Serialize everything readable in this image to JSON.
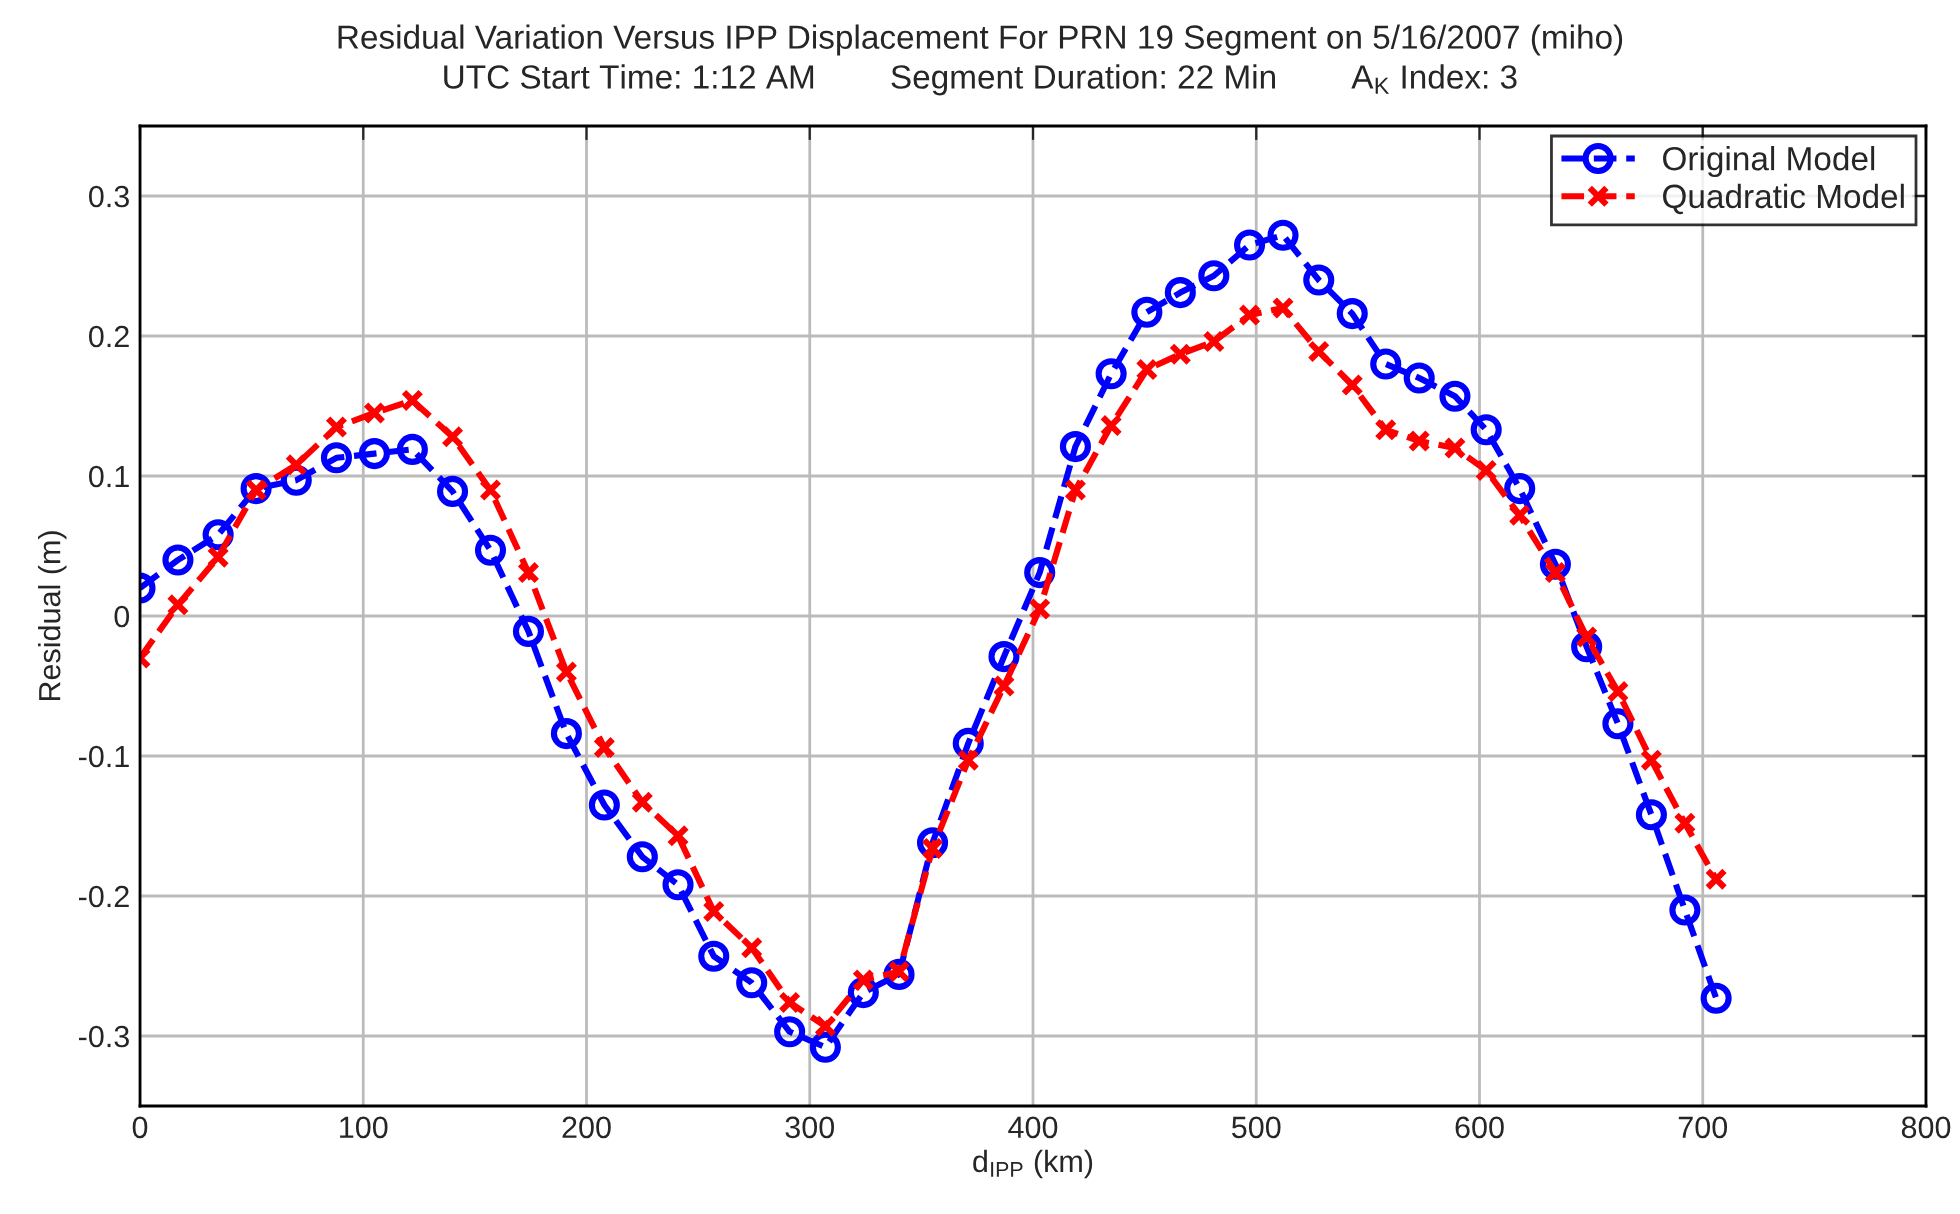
{
  "chart_data": {
    "type": "line",
    "title": "Residual Variation Versus IPP Displacement For PRN 19 Segment on 5/16/2007 (miho)",
    "subtitle": "UTC Start Time: 1:12 AM        Segment Duration: 22 Min        A$_{K}$ Index: 3",
    "xlabel": "d$_{IPP}$ (km)",
    "ylabel": "Residual (m)",
    "x": [
      0,
      17,
      35,
      52,
      70,
      88,
      105,
      122,
      140,
      157,
      174,
      191,
      208,
      225,
      241,
      257,
      274,
      291,
      307,
      324,
      340,
      355,
      371,
      387,
      403,
      419,
      435,
      451,
      466,
      481,
      497,
      512,
      528,
      543,
      558,
      573,
      589,
      603,
      618,
      634,
      648,
      662,
      677,
      692,
      706
    ],
    "series": [
      {
        "name": "Original Model",
        "color": "#0000ff",
        "marker": "circle",
        "line_style": "dashed",
        "values": [
          0.02,
          0.04,
          0.058,
          0.091,
          0.097,
          0.113,
          0.116,
          0.119,
          0.089,
          0.047,
          -0.011,
          -0.084,
          -0.135,
          -0.172,
          -0.192,
          -0.243,
          -0.262,
          -0.297,
          -0.308,
          -0.269,
          -0.256,
          -0.162,
          -0.091,
          -0.029,
          0.031,
          0.121,
          0.173,
          0.217,
          0.231,
          0.243,
          0.265,
          0.272,
          0.24,
          0.216,
          0.18,
          0.17,
          0.157,
          0.133,
          0.091,
          0.037,
          -0.022,
          -0.077,
          -0.142,
          -0.21,
          -0.273
        ]
      },
      {
        "name": "Quadratic Model",
        "color": "#ff0000",
        "marker": "cross",
        "line_style": "dashed",
        "values": [
          -0.03,
          0.008,
          0.042,
          0.09,
          0.108,
          0.135,
          0.145,
          0.154,
          0.128,
          0.09,
          0.031,
          -0.04,
          -0.094,
          -0.133,
          -0.157,
          -0.211,
          -0.237,
          -0.276,
          -0.293,
          -0.26,
          -0.254,
          -0.166,
          -0.103,
          -0.05,
          0.005,
          0.09,
          0.136,
          0.176,
          0.187,
          0.196,
          0.215,
          0.22,
          0.189,
          0.165,
          0.133,
          0.125,
          0.12,
          0.104,
          0.072,
          0.031,
          -0.015,
          -0.054,
          -0.103,
          -0.148,
          -0.188
        ]
      }
    ],
    "xlim": [
      0,
      800
    ],
    "xticks": [
      0,
      100,
      200,
      300,
      400,
      500,
      600,
      700,
      800
    ],
    "ylim": [
      -0.35,
      0.35
    ],
    "yticks": [
      -0.3,
      -0.2,
      -0.1,
      0,
      0.1,
      0.2,
      0.3
    ],
    "grid": true,
    "legend": "top right"
  }
}
